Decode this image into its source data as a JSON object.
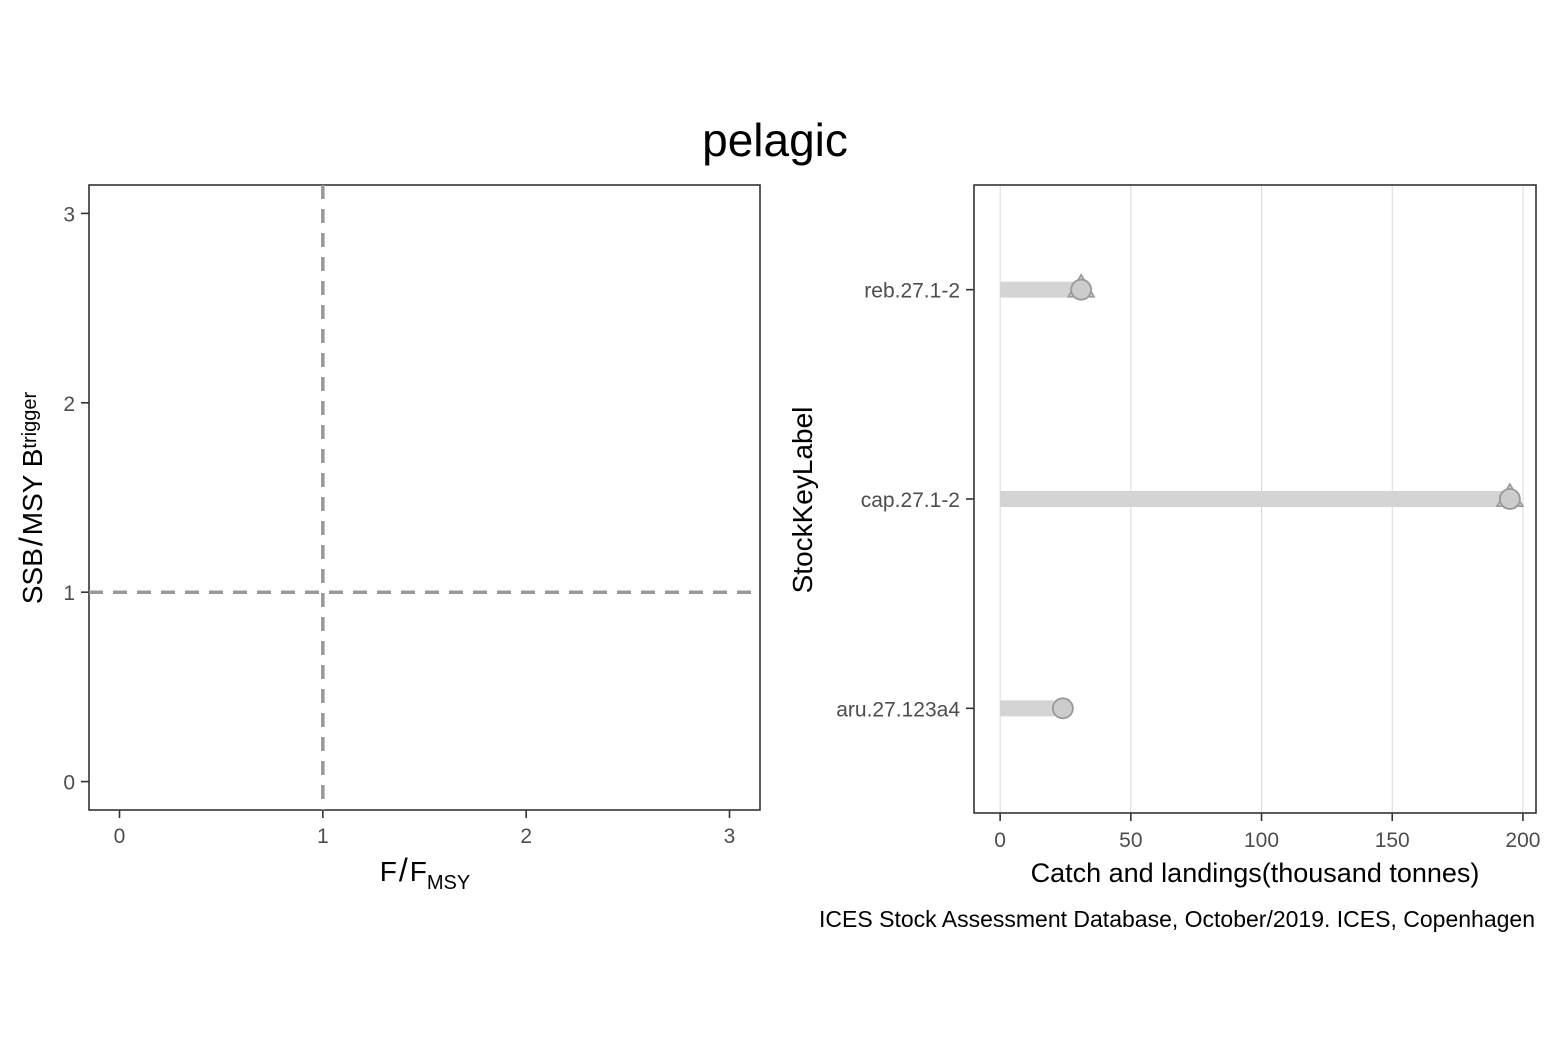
{
  "title": "pelagic",
  "caption": "ICES Stock Assessment Database, October/2019. ICES, Copenhagen",
  "chart_data": [
    {
      "type": "scatter",
      "xlabel_main": "F",
      "xlabel_sub": "MSY",
      "ylabel_main": "SSB",
      "ylabel_mid": "MSY B",
      "ylabel_sub": "trigger",
      "xlim": [
        -0.15,
        3.15
      ],
      "ylim": [
        -0.15,
        3.15
      ],
      "xticks": [
        0,
        1,
        2,
        3
      ],
      "yticks": [
        0,
        1,
        2,
        3
      ],
      "reference_lines": {
        "vline": 1,
        "hline": 1,
        "style": "dashed",
        "color": "#999999"
      },
      "points": [],
      "grid": false
    },
    {
      "type": "bar",
      "orientation": "horizontal",
      "xlabel": "Catch and landings(thousand tonnes)",
      "ylabel": "StockKeyLabel",
      "xlim": [
        -10,
        205
      ],
      "xticks": [
        0,
        50,
        100,
        150,
        200
      ],
      "grid": true,
      "bar_color": "#d4d4d4",
      "point_color": "#cccccc",
      "point_stroke": "#999999",
      "series": [
        {
          "name": "catch",
          "marker": "circle"
        },
        {
          "name": "landings",
          "marker": "triangle"
        }
      ],
      "categories": [
        "aru.27.123a4",
        "cap.27.1-2",
        "reb.27.1-2"
      ],
      "values": [
        24,
        195,
        31
      ],
      "landings": [
        null,
        195,
        31
      ]
    }
  ]
}
